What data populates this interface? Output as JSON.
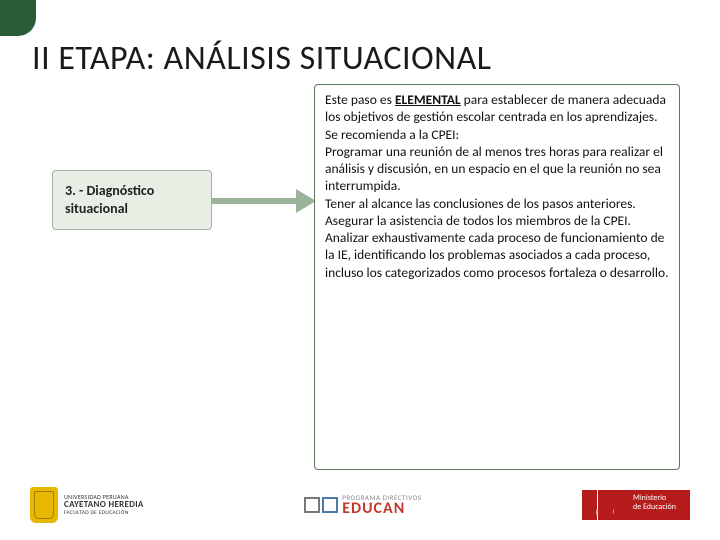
{
  "accent_color": "#2a5c3a",
  "title": "II ETAPA: ANÁLISIS SITUACIONAL",
  "title_fontsize": 34,
  "left_box": {
    "label": "3. - Diagnóstico situacional",
    "bg_color": "#e8eee3",
    "border_color": "#9bb39a",
    "fontsize": 14,
    "font_weight": "700"
  },
  "arrow": {
    "color": "#9bb39a"
  },
  "right_box": {
    "border_color": "#5a7a5a",
    "fontsize": 13.5,
    "intro_prefix": "Este paso es ",
    "intro_strong": "ELEMENTAL",
    "intro_suffix": " para establecer de manera adecuada los objetivos de gestión escolar centrada en los aprendizajes.",
    "line_recommend": "Se recomienda a la CPEI:",
    "para1": "Programar una reunión de al menos tres horas para realizar el análisis y discusión, en un espacio en el que la reunión no sea interrumpida.",
    "para2": "Tener al alcance las conclusiones de los pasos anteriores.",
    "para3": "Asegurar la asistencia de todos los miembros de la CPEI.",
    "para4": "Analizar exhaustivamente cada proceso de funcionamiento de la IE, identificando los problemas asociados a cada proceso, incluso los categorizados como procesos fortaleza o desarrollo."
  },
  "footer": {
    "upch": {
      "line1": "UNIVERSIDAD PERUANA",
      "line2": "CAYETANO HEREDIA",
      "line3": "FACULTAD DE EDUCACIÓN",
      "shield_color": "#e6b800"
    },
    "educan": {
      "prog": "PROGRAMA DIRECTIVOS",
      "main": "EDUCAN",
      "main_color": "#c0392b"
    },
    "peru": {
      "flag_label": "PERÚ",
      "mined_line1": "Ministerio",
      "mined_line2": "de Educación",
      "bg_color": "#b71c1c"
    }
  }
}
